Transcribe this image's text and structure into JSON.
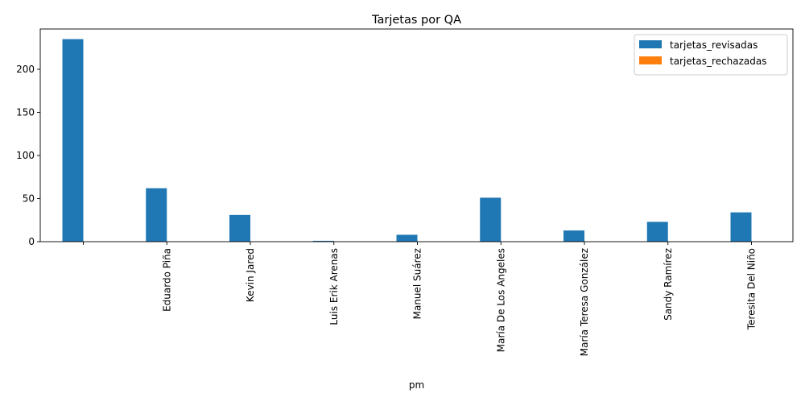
{
  "chart_data": {
    "type": "bar",
    "title": "Tarjetas por QA",
    "xlabel": "pm",
    "ylabel": "",
    "categories": [
      "",
      "Eduardo Piña",
      "Kevin Jared",
      "Luis Erik Arenas",
      "Manuel Suárez",
      "María De Los Angeles",
      "María Teresa González",
      "Sandy Ramírez",
      "Teresita Del Niño"
    ],
    "series": [
      {
        "name": "tarjetas_revisadas",
        "color": "#1f77b4",
        "values": [
          235,
          62,
          31,
          1,
          8,
          51,
          13,
          23,
          34
        ]
      },
      {
        "name": "tarjetas_rechazadas",
        "color": "#ff7f0e",
        "values": [
          0,
          0,
          0,
          0,
          0,
          0,
          0,
          0,
          0
        ]
      }
    ],
    "ylim": [
      0,
      246.75
    ],
    "yticks": [
      0,
      50,
      100,
      150,
      200
    ],
    "grid": false,
    "legend": "top-right"
  }
}
